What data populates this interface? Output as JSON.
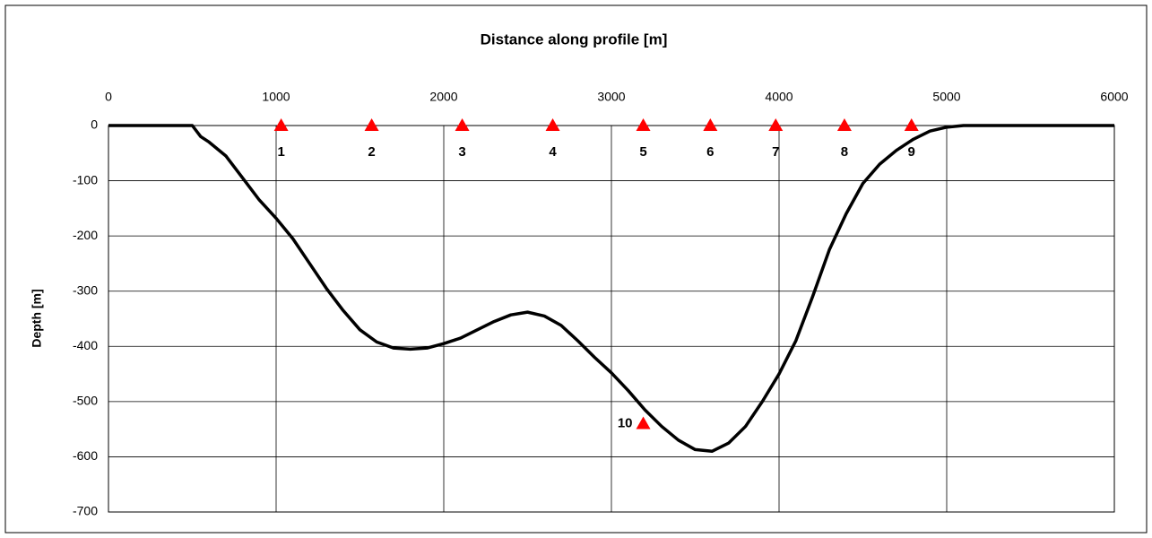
{
  "chart_data": {
    "type": "line",
    "title": "Distance along profile [m]",
    "y_label": "Depth [m]",
    "xlim": [
      0,
      6000
    ],
    "xticks": [
      0,
      1000,
      2000,
      3000,
      4000,
      5000,
      6000
    ],
    "ylim": [
      -700,
      0
    ],
    "yticks": [
      0,
      -100,
      -200,
      -300,
      -400,
      -500,
      -600,
      -700
    ],
    "x_axis_position": "top",
    "grid": true,
    "series": [
      {
        "color": "#000000",
        "marker": "none",
        "line": true,
        "x": [
          0,
          500,
          550,
          600,
          700,
          800,
          900,
          1000,
          1100,
          1200,
          1300,
          1400,
          1500,
          1600,
          1700,
          1800,
          1900,
          2000,
          2100,
          2200,
          2300,
          2400,
          2500,
          2600,
          2700,
          2800,
          2900,
          3000,
          3100,
          3200,
          3300,
          3400,
          3500,
          3600,
          3700,
          3800,
          3900,
          4000,
          4100,
          4200,
          4300,
          4400,
          4500,
          4600,
          4700,
          4800,
          4900,
          5000,
          5100,
          6000
        ],
        "values": [
          0,
          0,
          -20,
          -30,
          -55,
          -95,
          -135,
          -168,
          -205,
          -250,
          -295,
          -335,
          -370,
          -392,
          -403,
          -405,
          -403,
          -395,
          -385,
          -370,
          -355,
          -343,
          -338,
          -345,
          -362,
          -390,
          -420,
          -448,
          -480,
          -515,
          -545,
          -570,
          -587,
          -590,
          -575,
          -545,
          -500,
          -450,
          -390,
          -310,
          -225,
          -160,
          -105,
          -70,
          -45,
          -25,
          -10,
          -3,
          0,
          0
        ]
      },
      {
        "color": "#ff0000",
        "marker": "triangle",
        "line": false,
        "x": [
          1030,
          1570,
          2110,
          2650,
          3190,
          3590,
          3980,
          4390,
          4790,
          3190
        ],
        "values": [
          0,
          0,
          0,
          0,
          0,
          0,
          0,
          0,
          0,
          -540
        ],
        "labels": [
          "1",
          "2",
          "3",
          "4",
          "5",
          "6",
          "7",
          "8",
          "9",
          "10"
        ],
        "label_positions": [
          "below",
          "below",
          "below",
          "below",
          "below",
          "below",
          "below",
          "below",
          "below",
          "left"
        ]
      }
    ]
  }
}
